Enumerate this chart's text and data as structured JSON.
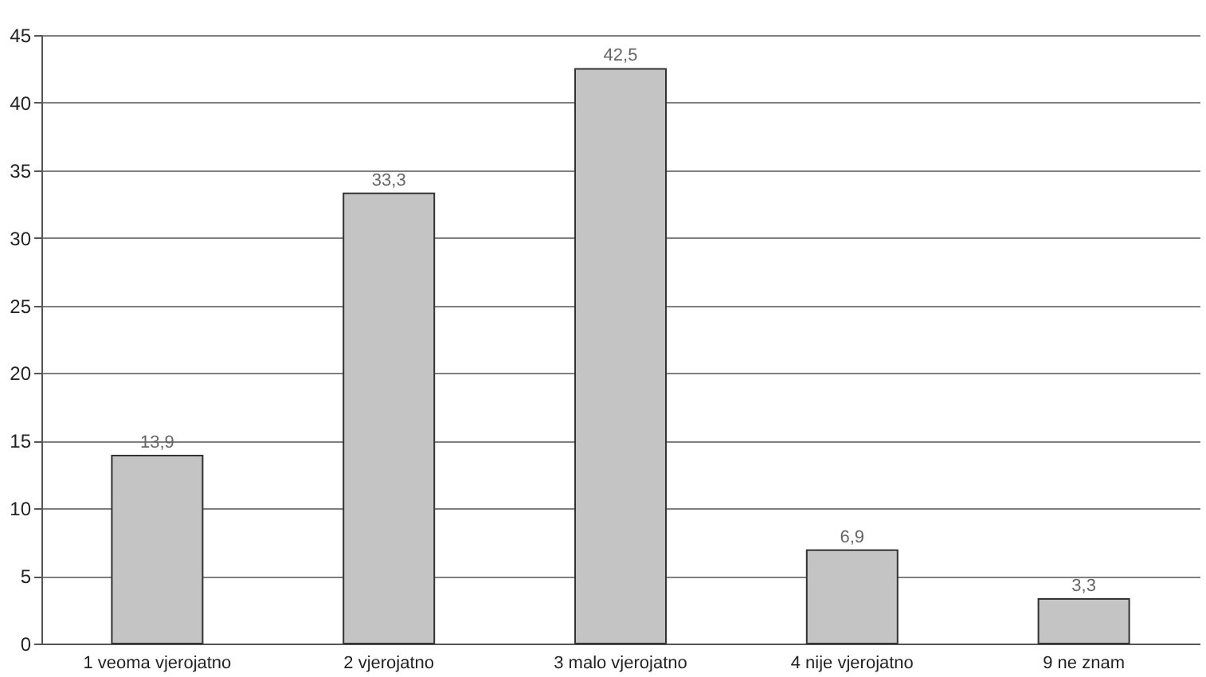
{
  "chart_data": {
    "type": "bar",
    "categories": [
      "1 veoma vjerojatno",
      "2 vjerojatno",
      "3 malo vjerojatno",
      "4 nije vjerojatno",
      "9 ne znam"
    ],
    "values": [
      13.9,
      33.3,
      42.5,
      6.9,
      3.3
    ],
    "value_labels": [
      "13,9",
      "33,3",
      "42,5",
      "6,9",
      "3,3"
    ],
    "color": "#c4c4c4",
    "ylim": [
      0,
      45
    ],
    "yticks": [
      0,
      5,
      10,
      15,
      20,
      25,
      30,
      35,
      40,
      45
    ],
    "grid": "y"
  }
}
